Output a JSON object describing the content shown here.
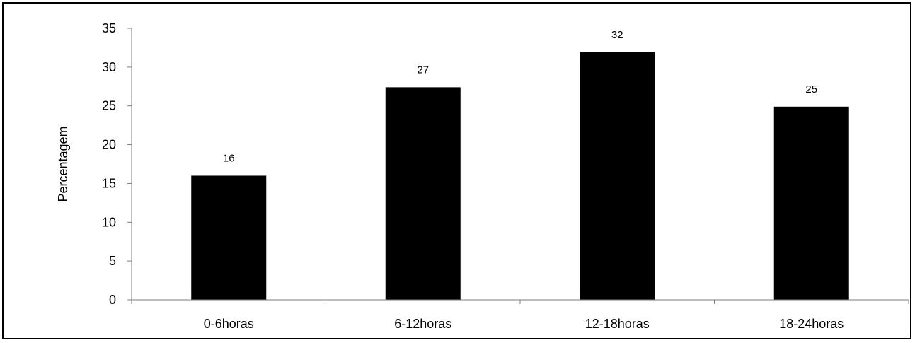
{
  "chart_data": {
    "type": "bar",
    "categories": [
      "0-6horas",
      "6-12horas",
      "12-18horas",
      "18-24horas"
    ],
    "series": [
      {
        "values": [
          16,
          27.4,
          31.9,
          24.9
        ],
        "data_labels": [
          "16",
          "27",
          "32",
          "25"
        ]
      }
    ],
    "title": "",
    "xlabel": "",
    "ylabel": "Percentagem",
    "ylim": [
      0,
      35
    ],
    "yticks": [
      "0",
      "5",
      "10",
      "15",
      "20",
      "25",
      "30",
      "35"
    ],
    "grid": false,
    "legend": "none",
    "bar_color": "#000000"
  }
}
